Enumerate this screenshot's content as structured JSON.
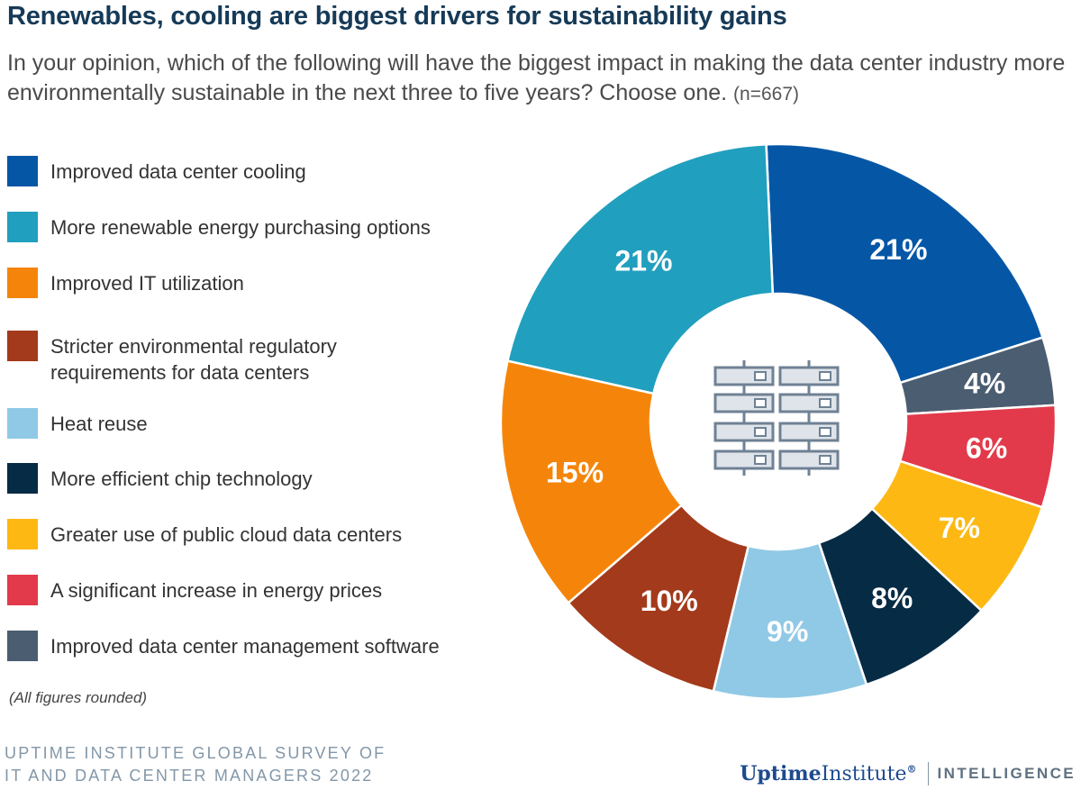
{
  "title": "Renewables, cooling are biggest drivers for sustainability gains",
  "subtitle": "In your opinion, which of the following will have the biggest impact in making the data center industry more environmentally sustainable in the next three to five years? Choose one.",
  "sample_size": "(n=667)",
  "footnote": "(All figures rounded)",
  "source_line1": "UPTIME INSTITUTE GLOBAL SURVEY OF",
  "source_line2": "IT AND DATA CENTER MANAGERS 2022",
  "logo": {
    "brand_bold": "Uptime",
    "brand_regular": "Institute",
    "mark": "®",
    "tag": "INTELLIGENCE"
  },
  "center_icon": "server-rack-icon",
  "chart_data": {
    "type": "pie",
    "style": "donut",
    "title": "Renewables, cooling are biggest drivers for sustainability gains",
    "categories": [
      "Improved data center cooling",
      "More renewable energy purchasing options",
      "Improved IT utilization",
      "Stricter environmental regulatory requirements for data centers",
      "Heat reuse",
      "More efficient chip technology",
      "Greater use of public cloud data centers",
      "A significant increase in energy prices",
      "Improved data center management software"
    ],
    "values": [
      21,
      21,
      15,
      10,
      9,
      8,
      7,
      6,
      4
    ],
    "labels": [
      "21%",
      "21%",
      "15%",
      "10%",
      "9%",
      "8%",
      "7%",
      "6%",
      "4%"
    ],
    "colors": [
      "#0557a6",
      "#219fbe",
      "#f5850a",
      "#a33a1b",
      "#90c9e6",
      "#062b45",
      "#fdb813",
      "#e23a4a",
      "#4b5d70"
    ],
    "unit": "%",
    "legend_position": "left"
  }
}
